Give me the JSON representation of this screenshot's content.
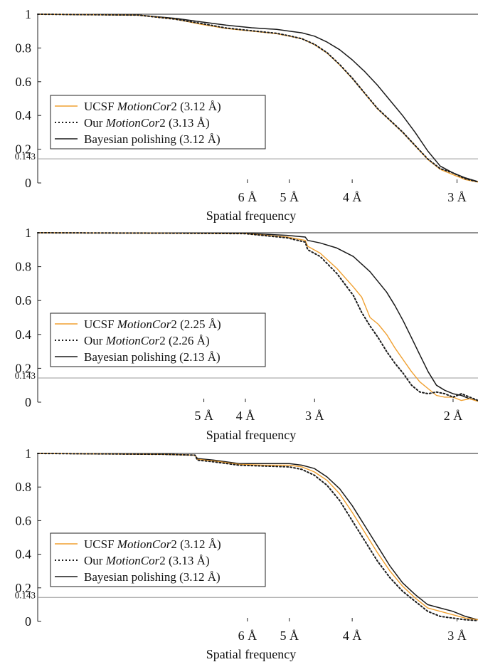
{
  "colors": {
    "ucsf": "#f0a030",
    "ours": "#1a1a1a",
    "bayes": "#1a1a1a",
    "threshold": "#999999"
  },
  "chart_data": [
    {
      "type": "line",
      "xlabel": "Spatial frequency",
      "ylim": [
        0,
        1
      ],
      "y_ticks": [
        {
          "value": 0,
          "label": "0"
        },
        {
          "value": 0.2,
          "label": "0.2"
        },
        {
          "value": 0.4,
          "label": "0.4"
        },
        {
          "value": 0.6,
          "label": "0.6"
        },
        {
          "value": 0.8,
          "label": "0.8"
        },
        {
          "value": 1,
          "label": "1"
        }
      ],
      "threshold": {
        "value": 0.143,
        "label": "0.143"
      },
      "x_unit": "1/Å",
      "xlim": [
        0,
        0.35
      ],
      "x_ticks": [
        {
          "value": 0.1667,
          "label": "6 Å"
        },
        {
          "value": 0.2,
          "label": "5 Å"
        },
        {
          "value": 0.25,
          "label": "4 Å"
        },
        {
          "value": 0.3333,
          "label": "3 Å"
        }
      ],
      "legend": "center-left",
      "series": [
        {
          "name_plain": "UCSF ",
          "name_italic": "MotionCor",
          "name_suffix": "2 (3.12 Å)",
          "style": "solid-orange",
          "points": [
            [
              0,
              1
            ],
            [
              0.08,
              0.995
            ],
            [
              0.11,
              0.97
            ],
            [
              0.13,
              0.94
            ],
            [
              0.15,
              0.915
            ],
            [
              0.17,
              0.9
            ],
            [
              0.19,
              0.885
            ],
            [
              0.2,
              0.87
            ],
            [
              0.21,
              0.855
            ],
            [
              0.22,
              0.82
            ],
            [
              0.23,
              0.77
            ],
            [
              0.24,
              0.7
            ],
            [
              0.25,
              0.62
            ],
            [
              0.26,
              0.53
            ],
            [
              0.27,
              0.44
            ],
            [
              0.28,
              0.37
            ],
            [
              0.29,
              0.3
            ],
            [
              0.3,
              0.22
            ],
            [
              0.31,
              0.14
            ],
            [
              0.32,
              0.08
            ],
            [
              0.33,
              0.05
            ],
            [
              0.34,
              0.02
            ],
            [
              0.35,
              0.005
            ]
          ]
        },
        {
          "name_plain": "Our ",
          "name_italic": "MotionCor",
          "name_suffix": "2 (3.13 Å)",
          "style": "dotted-black",
          "points": [
            [
              0,
              1
            ],
            [
              0.08,
              0.995
            ],
            [
              0.11,
              0.97
            ],
            [
              0.13,
              0.945
            ],
            [
              0.15,
              0.918
            ],
            [
              0.17,
              0.902
            ],
            [
              0.19,
              0.887
            ],
            [
              0.2,
              0.872
            ],
            [
              0.21,
              0.855
            ],
            [
              0.22,
              0.822
            ],
            [
              0.23,
              0.772
            ],
            [
              0.24,
              0.702
            ],
            [
              0.25,
              0.622
            ],
            [
              0.26,
              0.532
            ],
            [
              0.27,
              0.442
            ],
            [
              0.28,
              0.372
            ],
            [
              0.29,
              0.302
            ],
            [
              0.3,
              0.222
            ],
            [
              0.31,
              0.142
            ],
            [
              0.32,
              0.085
            ],
            [
              0.33,
              0.06
            ],
            [
              0.34,
              0.025
            ],
            [
              0.35,
              0.006
            ]
          ]
        },
        {
          "name_plain": "Bayesian polishing (3.12 Å)",
          "name_italic": "",
          "name_suffix": "",
          "style": "solid-black",
          "points": [
            [
              0,
              1
            ],
            [
              0.08,
              0.995
            ],
            [
              0.11,
              0.975
            ],
            [
              0.13,
              0.955
            ],
            [
              0.15,
              0.935
            ],
            [
              0.17,
              0.92
            ],
            [
              0.19,
              0.91
            ],
            [
              0.2,
              0.9
            ],
            [
              0.21,
              0.89
            ],
            [
              0.22,
              0.87
            ],
            [
              0.23,
              0.835
            ],
            [
              0.24,
              0.79
            ],
            [
              0.25,
              0.73
            ],
            [
              0.26,
              0.66
            ],
            [
              0.27,
              0.58
            ],
            [
              0.28,
              0.49
            ],
            [
              0.29,
              0.4
            ],
            [
              0.3,
              0.3
            ],
            [
              0.31,
              0.19
            ],
            [
              0.32,
              0.1
            ],
            [
              0.33,
              0.06
            ],
            [
              0.34,
              0.03
            ],
            [
              0.35,
              0.008
            ]
          ]
        }
      ]
    },
    {
      "type": "line",
      "xlabel": "Spatial frequency",
      "ylim": [
        0,
        1
      ],
      "y_ticks": [
        {
          "value": 0,
          "label": "0"
        },
        {
          "value": 0.2,
          "label": "0.2"
        },
        {
          "value": 0.4,
          "label": "0.4"
        },
        {
          "value": 0.6,
          "label": "0.6"
        },
        {
          "value": 0.8,
          "label": "0.8"
        },
        {
          "value": 1,
          "label": "1"
        }
      ],
      "threshold": {
        "value": 0.143,
        "label": "0.143"
      },
      "x_unit": "1/Å",
      "xlim": [
        0,
        0.53
      ],
      "x_ticks": [
        {
          "value": 0.2,
          "label": "5 Å"
        },
        {
          "value": 0.25,
          "label": "4 Å"
        },
        {
          "value": 0.3333,
          "label": "3 Å"
        },
        {
          "value": 0.5,
          "label": "2 Å"
        }
      ],
      "legend": "center-left",
      "series": [
        {
          "name_plain": "UCSF ",
          "name_italic": "MotionCor",
          "name_suffix": "2 (2.25 Å)",
          "style": "solid-orange",
          "points": [
            [
              0,
              1
            ],
            [
              0.15,
              0.998
            ],
            [
              0.25,
              0.995
            ],
            [
              0.3,
              0.975
            ],
            [
              0.322,
              0.955
            ],
            [
              0.325,
              0.92
            ],
            [
              0.34,
              0.88
            ],
            [
              0.36,
              0.79
            ],
            [
              0.38,
              0.68
            ],
            [
              0.39,
              0.62
            ],
            [
              0.4,
              0.5
            ],
            [
              0.41,
              0.46
            ],
            [
              0.42,
              0.4
            ],
            [
              0.43,
              0.32
            ],
            [
              0.44,
              0.25
            ],
            [
              0.45,
              0.18
            ],
            [
              0.46,
              0.12
            ],
            [
              0.47,
              0.08
            ],
            [
              0.48,
              0.04
            ],
            [
              0.49,
              0.03
            ],
            [
              0.5,
              0.03
            ],
            [
              0.51,
              0.01
            ],
            [
              0.52,
              0.02
            ],
            [
              0.53,
              0.005
            ]
          ]
        },
        {
          "name_plain": "Our ",
          "name_italic": "MotionCor",
          "name_suffix": "2 (2.26 Å)",
          "style": "dotted-black",
          "points": [
            [
              0,
              1
            ],
            [
              0.15,
              0.998
            ],
            [
              0.25,
              0.995
            ],
            [
              0.3,
              0.97
            ],
            [
              0.322,
              0.945
            ],
            [
              0.325,
              0.9
            ],
            [
              0.34,
              0.86
            ],
            [
              0.36,
              0.76
            ],
            [
              0.38,
              0.63
            ],
            [
              0.39,
              0.53
            ],
            [
              0.4,
              0.45
            ],
            [
              0.41,
              0.38
            ],
            [
              0.42,
              0.3
            ],
            [
              0.43,
              0.23
            ],
            [
              0.44,
              0.17
            ],
            [
              0.45,
              0.1
            ],
            [
              0.46,
              0.06
            ],
            [
              0.47,
              0.05
            ],
            [
              0.48,
              0.06
            ],
            [
              0.49,
              0.05
            ],
            [
              0.5,
              0.03
            ],
            [
              0.51,
              0.05
            ],
            [
              0.52,
              0.03
            ],
            [
              0.53,
              0.01
            ]
          ]
        },
        {
          "name_plain": "Bayesian polishing (2.13 Å)",
          "name_italic": "",
          "name_suffix": "",
          "style": "solid-black",
          "points": [
            [
              0,
              1
            ],
            [
              0.15,
              0.998
            ],
            [
              0.25,
              0.997
            ],
            [
              0.3,
              0.985
            ],
            [
              0.322,
              0.975
            ],
            [
              0.325,
              0.955
            ],
            [
              0.34,
              0.94
            ],
            [
              0.36,
              0.91
            ],
            [
              0.38,
              0.86
            ],
            [
              0.4,
              0.77
            ],
            [
              0.42,
              0.65
            ],
            [
              0.43,
              0.57
            ],
            [
              0.44,
              0.48
            ],
            [
              0.45,
              0.38
            ],
            [
              0.46,
              0.28
            ],
            [
              0.47,
              0.18
            ],
            [
              0.48,
              0.1
            ],
            [
              0.49,
              0.07
            ],
            [
              0.5,
              0.05
            ],
            [
              0.51,
              0.04
            ],
            [
              0.52,
              0.02
            ],
            [
              0.53,
              0.01
            ]
          ]
        }
      ]
    },
    {
      "type": "line",
      "xlabel": "Spatial frequency",
      "ylim": [
        0,
        1
      ],
      "y_ticks": [
        {
          "value": 0,
          "label": "0"
        },
        {
          "value": 0.2,
          "label": "0.2"
        },
        {
          "value": 0.4,
          "label": "0.4"
        },
        {
          "value": 0.6,
          "label": "0.6"
        },
        {
          "value": 0.8,
          "label": "0.8"
        },
        {
          "value": 1,
          "label": "1"
        }
      ],
      "threshold": {
        "value": 0.143,
        "label": "0.143"
      },
      "x_unit": "1/Å",
      "xlim": [
        0,
        0.35
      ],
      "x_ticks": [
        {
          "value": 0.1667,
          "label": "6 Å"
        },
        {
          "value": 0.2,
          "label": "5 Å"
        },
        {
          "value": 0.25,
          "label": "4 Å"
        },
        {
          "value": 0.3333,
          "label": "3 Å"
        }
      ],
      "legend": "center-left",
      "series": [
        {
          "name_plain": "UCSF ",
          "name_italic": "MotionCor",
          "name_suffix": "2 (3.12 Å)",
          "style": "solid-orange",
          "points": [
            [
              0,
              1
            ],
            [
              0.1,
              0.995
            ],
            [
              0.125,
              0.99
            ],
            [
              0.127,
              0.965
            ],
            [
              0.14,
              0.955
            ],
            [
              0.16,
              0.935
            ],
            [
              0.18,
              0.93
            ],
            [
              0.2,
              0.93
            ],
            [
              0.21,
              0.92
            ],
            [
              0.22,
              0.89
            ],
            [
              0.23,
              0.84
            ],
            [
              0.24,
              0.76
            ],
            [
              0.25,
              0.65
            ],
            [
              0.26,
              0.53
            ],
            [
              0.27,
              0.41
            ],
            [
              0.28,
              0.3
            ],
            [
              0.29,
              0.21
            ],
            [
              0.3,
              0.14
            ],
            [
              0.31,
              0.08
            ],
            [
              0.32,
              0.06
            ],
            [
              0.33,
              0.04
            ],
            [
              0.34,
              0.02
            ],
            [
              0.35,
              0.01
            ]
          ]
        },
        {
          "name_plain": "Our ",
          "name_italic": "MotionCor",
          "name_suffix": "2 (3.13 Å)",
          "style": "dotted-black",
          "points": [
            [
              0,
              1
            ],
            [
              0.1,
              0.995
            ],
            [
              0.125,
              0.99
            ],
            [
              0.127,
              0.96
            ],
            [
              0.14,
              0.95
            ],
            [
              0.16,
              0.93
            ],
            [
              0.18,
              0.925
            ],
            [
              0.2,
              0.92
            ],
            [
              0.21,
              0.905
            ],
            [
              0.22,
              0.87
            ],
            [
              0.23,
              0.81
            ],
            [
              0.24,
              0.72
            ],
            [
              0.25,
              0.6
            ],
            [
              0.26,
              0.48
            ],
            [
              0.27,
              0.36
            ],
            [
              0.28,
              0.26
            ],
            [
              0.29,
              0.18
            ],
            [
              0.3,
              0.12
            ],
            [
              0.31,
              0.06
            ],
            [
              0.32,
              0.03
            ],
            [
              0.33,
              0.02
            ],
            [
              0.34,
              0.01
            ],
            [
              0.35,
              0.005
            ]
          ]
        },
        {
          "name_plain": "Bayesian polishing (3.12 Å)",
          "name_italic": "",
          "name_suffix": "",
          "style": "solid-black",
          "points": [
            [
              0,
              1
            ],
            [
              0.1,
              0.995
            ],
            [
              0.125,
              0.99
            ],
            [
              0.127,
              0.97
            ],
            [
              0.14,
              0.96
            ],
            [
              0.16,
              0.94
            ],
            [
              0.18,
              0.94
            ],
            [
              0.2,
              0.94
            ],
            [
              0.21,
              0.93
            ],
            [
              0.22,
              0.91
            ],
            [
              0.23,
              0.86
            ],
            [
              0.24,
              0.79
            ],
            [
              0.25,
              0.69
            ],
            [
              0.26,
              0.57
            ],
            [
              0.27,
              0.45
            ],
            [
              0.28,
              0.33
            ],
            [
              0.29,
              0.23
            ],
            [
              0.3,
              0.16
            ],
            [
              0.31,
              0.1
            ],
            [
              0.32,
              0.08
            ],
            [
              0.33,
              0.06
            ],
            [
              0.34,
              0.03
            ],
            [
              0.35,
              0.01
            ]
          ]
        }
      ]
    }
  ]
}
